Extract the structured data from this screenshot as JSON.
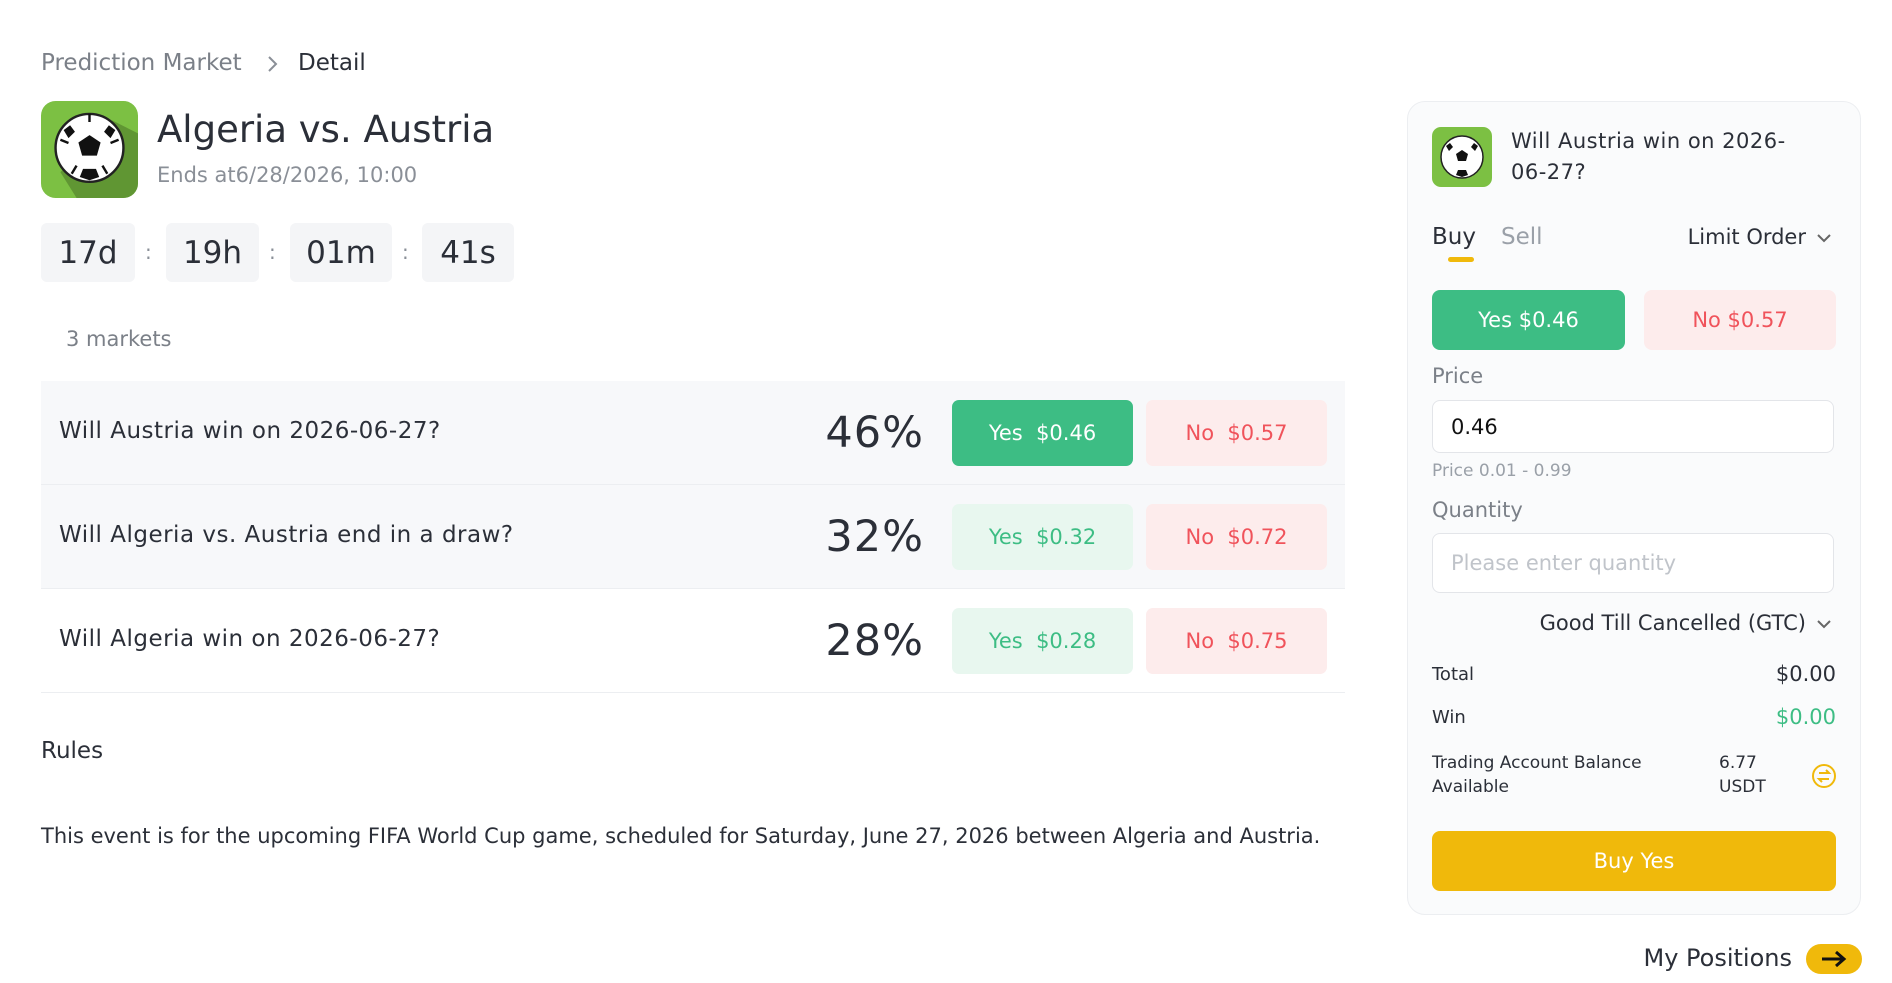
{
  "breadcrumb": {
    "parent": "Prediction Market",
    "current": "Detail"
  },
  "event": {
    "title": "Algeria vs. Austria",
    "ends": "Ends at6/28/2026, 10:00"
  },
  "countdown": {
    "parts": [
      "17d",
      "19h",
      "01m",
      "41s"
    ],
    "separator": ":"
  },
  "markets_count": "3 markets",
  "markets": [
    {
      "question": "Will Austria win on 2026-06-27?",
      "percent": "46%",
      "yes": "Yes  $0.46",
      "no": "No  $0.57"
    },
    {
      "question": "Will Algeria vs. Austria end in a draw?",
      "percent": "32%",
      "yes": "Yes  $0.32",
      "no": "No  $0.72"
    },
    {
      "question": "Will Algeria win on 2026-06-27?",
      "percent": "28%",
      "yes": "Yes  $0.28",
      "no": "No  $0.75"
    }
  ],
  "rules": {
    "title": "Rules",
    "text": "This event is for the upcoming FIFA World Cup game, scheduled for Saturday, June 27, 2026 between Algeria and Austria."
  },
  "order": {
    "question": "Will Austria win on 2026-06-27?",
    "tab_buy": "Buy",
    "tab_sell": "Sell",
    "order_type": "Limit Order",
    "yes": "Yes $0.46",
    "no": "No $0.57",
    "price_label": "Price",
    "price_value": "0.46",
    "price_hint": "Price 0.01 - 0.99",
    "quantity_label": "Quantity",
    "quantity_placeholder": "Please enter quantity",
    "tif": "Good Till Cancelled (GTC)",
    "total_label": "Total",
    "total_value": "$0.00",
    "win_label": "Win",
    "win_value": "$0.00",
    "balance_label": "Trading Account Balance Available",
    "balance_value": "6.77 USDT",
    "submit": "Buy Yes"
  },
  "positions": "My Positions"
}
